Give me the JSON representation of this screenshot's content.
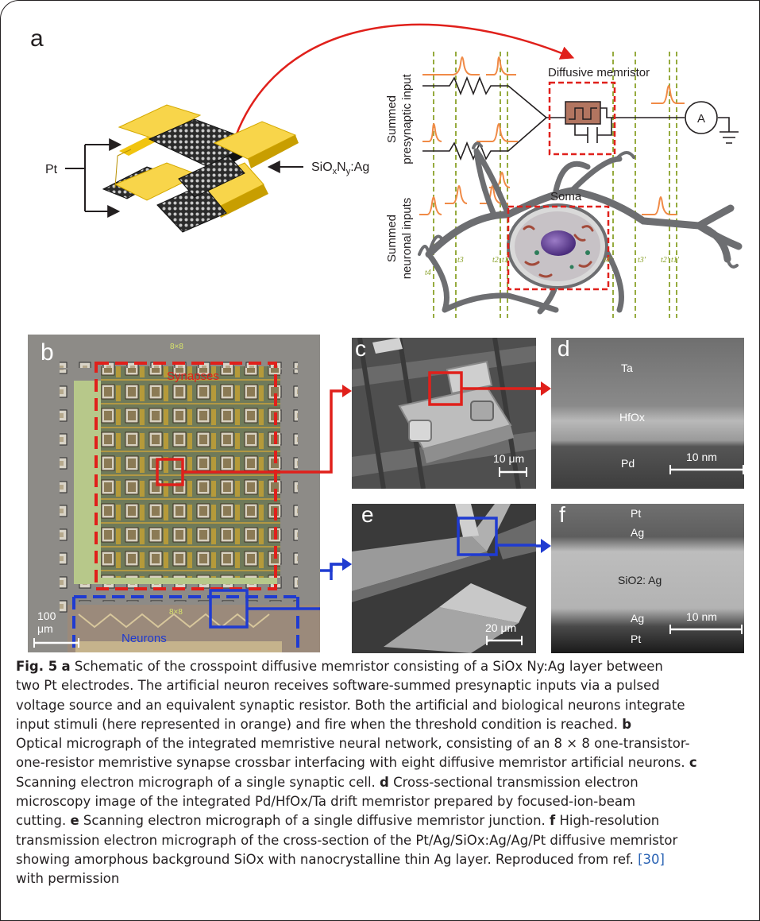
{
  "panel_a": {
    "letter": "a",
    "label_pt": "Pt",
    "label_sio_parts": [
      "SiO",
      "x",
      "N",
      "y",
      ":Ag"
    ],
    "label_presynaptic_1": "Summed",
    "label_presynaptic_2": "presynaptic input",
    "label_neuronal_1": "Summed",
    "label_neuronal_2": "neuronal inputs",
    "label_memristor": "Diffusive memristor",
    "label_soma": "Soma",
    "label_ammeter": "A",
    "time_labels_left": [
      "t4",
      "t3",
      "t2",
      "t1"
    ],
    "time_labels_right": [
      "t4'",
      "t3'",
      "t2'",
      "t1'"
    ],
    "colors": {
      "arrow": "#e0201b",
      "spike": "#f08a46",
      "dashed": "#8aa22a",
      "memristor": "#b27560"
    }
  },
  "panel_b": {
    "letter": "b",
    "chip_label_top": "8×8",
    "chip_label_bottom": "8×8",
    "synapses_label": "Synapses",
    "neurons_label": "Neurons",
    "scale_value": "100",
    "scale_unit": "μm"
  },
  "panel_c": {
    "letter": "c",
    "scale": "10 μm"
  },
  "panel_d": {
    "letter": "d",
    "layers": [
      "Ta",
      "HfOx",
      "Pd"
    ],
    "scale": "10 nm"
  },
  "panel_e": {
    "letter": "e",
    "scale": "20 μm"
  },
  "panel_f": {
    "letter": "f",
    "layers": [
      "Pt",
      "Ag",
      "SiO2: Ag",
      "Ag",
      "Pt"
    ],
    "scale": "10 nm"
  },
  "caption": {
    "fig_label": "Fig. 5",
    "lines": [
      [
        {
          "t": "a",
          "b": true
        },
        {
          "t": " Schematic of the crosspoint diffusive memristor consisting of a SiOx Ny:Ag layer between"
        }
      ],
      [
        {
          "t": "two Pt electrodes. The artificial neuron receives software-summed presynaptic inputs via a pulsed"
        }
      ],
      [
        {
          "t": "voltage source and an equivalent synaptic resistor. Both the artificial and biological neurons integrate"
        }
      ],
      [
        {
          "t": "input stimuli (here represented in orange) and fire when the threshold condition is reached. "
        },
        {
          "t": "b",
          "b": true
        }
      ],
      [
        {
          "t": "Optical micrograph of the integrated memristive neural network, consisting of an 8 × 8 one-transistor-"
        }
      ],
      [
        {
          "t": "one-resistor memristive synapse crossbar interfacing with eight diffusive memristor artificial neurons. "
        },
        {
          "t": "c",
          "b": true
        }
      ],
      [
        {
          "t": "Scanning electron micrograph of a single synaptic cell. "
        },
        {
          "t": "d",
          "b": true
        },
        {
          "t": " Cross-sectional transmission electron"
        }
      ],
      [
        {
          "t": "microscopy image of the integrated Pd/HfOx/Ta drift memristor prepared by focused-ion-beam"
        }
      ],
      [
        {
          "t": "cutting. "
        },
        {
          "t": "e",
          "b": true
        },
        {
          "t": " Scanning electron micrograph of a single diffusive memristor junction. "
        },
        {
          "t": "f",
          "b": true
        },
        {
          "t": " High-resolution"
        }
      ],
      [
        {
          "t": "transmission electron micrograph of the cross-section of the Pt/Ag/SiOx:Ag/Ag/Pt diffusive memristor"
        }
      ],
      [
        {
          "t": "showing amorphous background SiOx with nanocrystalline thin Ag layer. Reproduced from ref. "
        },
        {
          "t": "[30]",
          "ref": true
        }
      ],
      [
        {
          "t": "with permission"
        }
      ]
    ]
  }
}
